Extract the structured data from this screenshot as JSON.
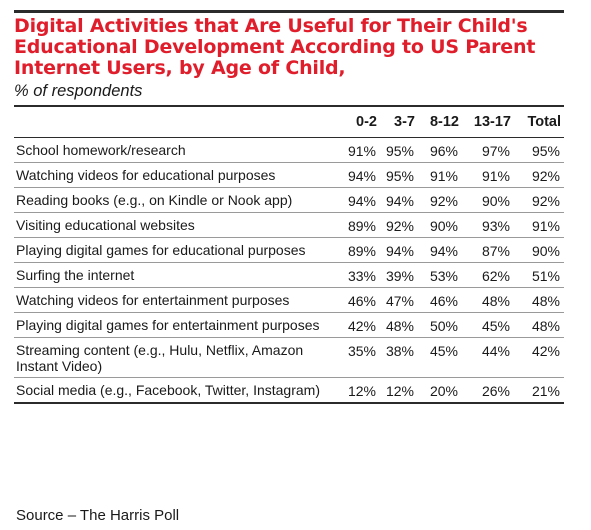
{
  "title": "Digital Activities that Are Useful for Their Child's Educational Development According to US Parent Internet Users, by Age of Child,",
  "subtitle": "% of respondents",
  "source": "Source – The Harris Poll",
  "chart_data": {
    "type": "table",
    "title": "Digital Activities that Are Useful for Their Child's Educational Development According to US Parent Internet Users, by Age of Child,",
    "subtitle": "% of respondents",
    "columns": [
      "0-2",
      "3-7",
      "8-12",
      "13-17",
      "Total"
    ],
    "rows": [
      {
        "label": "School homework/research",
        "values": [
          "91%",
          "95%",
          "96%",
          "97%",
          "95%"
        ]
      },
      {
        "label": "Watching videos for educational purposes",
        "values": [
          "94%",
          "95%",
          "91%",
          "91%",
          "92%"
        ]
      },
      {
        "label": "Reading books (e.g., on Kindle or Nook app)",
        "values": [
          "94%",
          "94%",
          "92%",
          "90%",
          "92%"
        ]
      },
      {
        "label": "Visiting educational websites",
        "values": [
          "89%",
          "92%",
          "90%",
          "93%",
          "91%"
        ]
      },
      {
        "label": "Playing digital games for educational purposes",
        "values": [
          "89%",
          "94%",
          "94%",
          "87%",
          "90%"
        ]
      },
      {
        "label": "Surfing the internet",
        "values": [
          "33%",
          "39%",
          "53%",
          "62%",
          "51%"
        ]
      },
      {
        "label": "Watching videos for entertainment purposes",
        "values": [
          "46%",
          "47%",
          "46%",
          "48%",
          "48%"
        ]
      },
      {
        "label": "Playing digital games for entertainment purposes",
        "values": [
          "42%",
          "48%",
          "50%",
          "45%",
          "48%"
        ]
      },
      {
        "label": "Streaming content (e.g., Hulu, Netflix, Amazon Instant Video)",
        "values": [
          "35%",
          "38%",
          "45%",
          "44%",
          "42%"
        ]
      },
      {
        "label": "Social media (e.g., Facebook, Twitter, Instagram)",
        "values": [
          "12%",
          "12%",
          "20%",
          "26%",
          "21%"
        ]
      }
    ]
  }
}
